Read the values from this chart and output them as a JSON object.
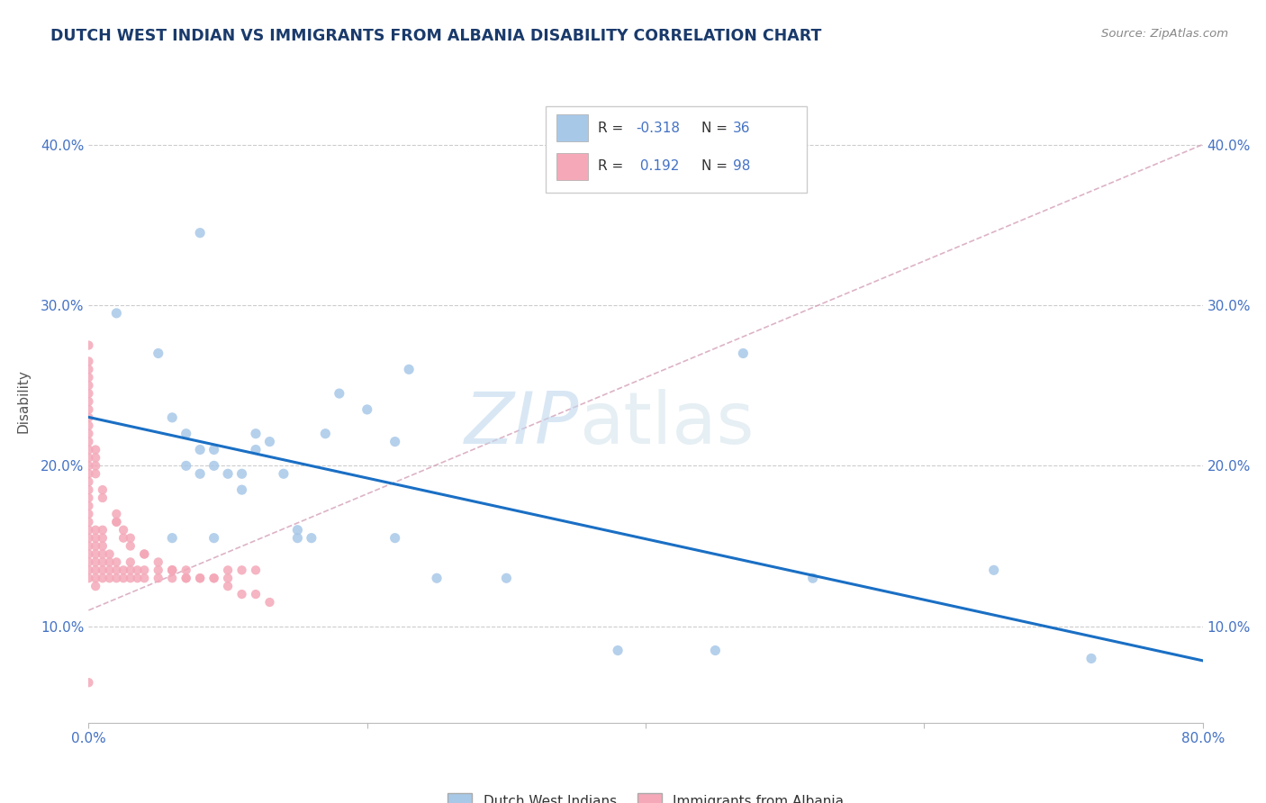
{
  "title": "DUTCH WEST INDIAN VS IMMIGRANTS FROM ALBANIA DISABILITY CORRELATION CHART",
  "source": "Source: ZipAtlas.com",
  "ylabel": "Disability",
  "xlim": [
    0.0,
    0.8
  ],
  "ylim": [
    0.04,
    0.44
  ],
  "yticks": [
    0.1,
    0.2,
    0.3,
    0.4
  ],
  "ytick_labels": [
    "10.0%",
    "20.0%",
    "30.0%",
    "40.0%"
  ],
  "xticks": [
    0.0,
    0.2,
    0.4,
    0.6,
    0.8
  ],
  "xtick_labels": [
    "0.0%",
    "",
    "",
    "",
    "80.0%"
  ],
  "blue_color": "#a8c8e8",
  "pink_color": "#f4a8b8",
  "line_blue": "#1a6fc4",
  "line_pink_dash": "#d4a0b8",
  "title_color": "#1a3a6b",
  "axis_color": "#4472c4",
  "legend_label_color": "#333333",
  "blue_scatter_x": [
    0.02,
    0.05,
    0.06,
    0.07,
    0.07,
    0.08,
    0.08,
    0.09,
    0.09,
    0.1,
    0.11,
    0.11,
    0.12,
    0.12,
    0.13,
    0.14,
    0.15,
    0.15,
    0.16,
    0.17,
    0.18,
    0.2,
    0.22,
    0.22,
    0.23,
    0.25,
    0.3,
    0.38,
    0.45,
    0.47,
    0.52,
    0.65,
    0.72,
    0.08,
    0.06,
    0.09
  ],
  "blue_scatter_y": [
    0.295,
    0.27,
    0.23,
    0.22,
    0.2,
    0.21,
    0.195,
    0.21,
    0.2,
    0.195,
    0.195,
    0.185,
    0.22,
    0.21,
    0.215,
    0.195,
    0.16,
    0.155,
    0.155,
    0.22,
    0.245,
    0.235,
    0.215,
    0.155,
    0.26,
    0.13,
    0.13,
    0.085,
    0.085,
    0.27,
    0.13,
    0.135,
    0.08,
    0.345,
    0.155,
    0.155
  ],
  "pink_scatter_x": [
    0.0,
    0.0,
    0.0,
    0.0,
    0.0,
    0.0,
    0.0,
    0.0,
    0.0,
    0.0,
    0.0,
    0.0,
    0.0,
    0.0,
    0.0,
    0.0,
    0.005,
    0.005,
    0.005,
    0.005,
    0.005,
    0.005,
    0.005,
    0.005,
    0.01,
    0.01,
    0.01,
    0.01,
    0.01,
    0.01,
    0.01,
    0.015,
    0.015,
    0.015,
    0.015,
    0.02,
    0.02,
    0.02,
    0.025,
    0.025,
    0.03,
    0.03,
    0.03,
    0.035,
    0.035,
    0.04,
    0.04,
    0.05,
    0.05,
    0.06,
    0.06,
    0.07,
    0.07,
    0.08,
    0.09,
    0.1,
    0.1,
    0.11,
    0.12,
    0.0,
    0.0,
    0.0,
    0.0,
    0.0,
    0.0,
    0.0,
    0.0,
    0.0,
    0.0,
    0.0,
    0.0,
    0.0,
    0.0,
    0.005,
    0.005,
    0.005,
    0.005,
    0.01,
    0.01,
    0.02,
    0.02,
    0.025,
    0.025,
    0.03,
    0.04,
    0.05,
    0.06,
    0.07,
    0.08,
    0.09,
    0.1,
    0.11,
    0.12,
    0.13,
    0.02,
    0.03,
    0.04,
    0.06
  ],
  "pink_scatter_y": [
    0.13,
    0.135,
    0.14,
    0.145,
    0.15,
    0.155,
    0.16,
    0.165,
    0.17,
    0.175,
    0.18,
    0.185,
    0.19,
    0.195,
    0.2,
    0.205,
    0.125,
    0.13,
    0.135,
    0.14,
    0.145,
    0.15,
    0.155,
    0.16,
    0.13,
    0.135,
    0.14,
    0.145,
    0.15,
    0.155,
    0.16,
    0.13,
    0.135,
    0.14,
    0.145,
    0.13,
    0.135,
    0.14,
    0.13,
    0.135,
    0.13,
    0.135,
    0.14,
    0.13,
    0.135,
    0.13,
    0.135,
    0.13,
    0.135,
    0.13,
    0.135,
    0.13,
    0.135,
    0.13,
    0.13,
    0.13,
    0.135,
    0.135,
    0.135,
    0.21,
    0.215,
    0.22,
    0.225,
    0.23,
    0.235,
    0.24,
    0.245,
    0.25,
    0.255,
    0.26,
    0.265,
    0.275,
    0.065,
    0.195,
    0.2,
    0.205,
    0.21,
    0.18,
    0.185,
    0.165,
    0.17,
    0.155,
    0.16,
    0.15,
    0.145,
    0.14,
    0.135,
    0.13,
    0.13,
    0.13,
    0.125,
    0.12,
    0.12,
    0.115,
    0.165,
    0.155,
    0.145,
    0.135
  ],
  "watermark_zip_color": "#c0d8ee",
  "watermark_atlas_color": "#c8dce8"
}
